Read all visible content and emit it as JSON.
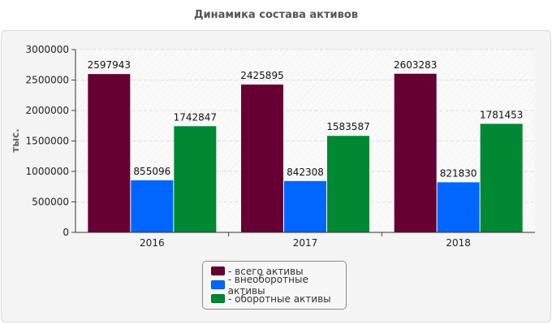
{
  "chart_data": {
    "type": "bar",
    "title": "Динамика состава активов",
    "ylabel": "тыс.",
    "xlabel": "",
    "categories": [
      "2016",
      "2017",
      "2018"
    ],
    "ylim": [
      0,
      3000000
    ],
    "yticks": [
      "0",
      "500000",
      "1000000",
      "1500000",
      "2000000",
      "2500000",
      "3000000"
    ],
    "ytick_values": [
      0,
      500000,
      1000000,
      1500000,
      2000000,
      2500000,
      3000000
    ],
    "series": [
      {
        "name": "- всего активы",
        "color": "#660033",
        "values": [
          2597943,
          2425895,
          2603283
        ]
      },
      {
        "name": "- внеоборотные активы",
        "color": "#0066ff",
        "values": [
          855096,
          842308,
          821830
        ]
      },
      {
        "name": "- оборотные активы",
        "color": "#008833",
        "values": [
          1742847,
          1583587,
          1781453
        ]
      }
    ],
    "legend_position": "bottom-center",
    "grid": true
  }
}
